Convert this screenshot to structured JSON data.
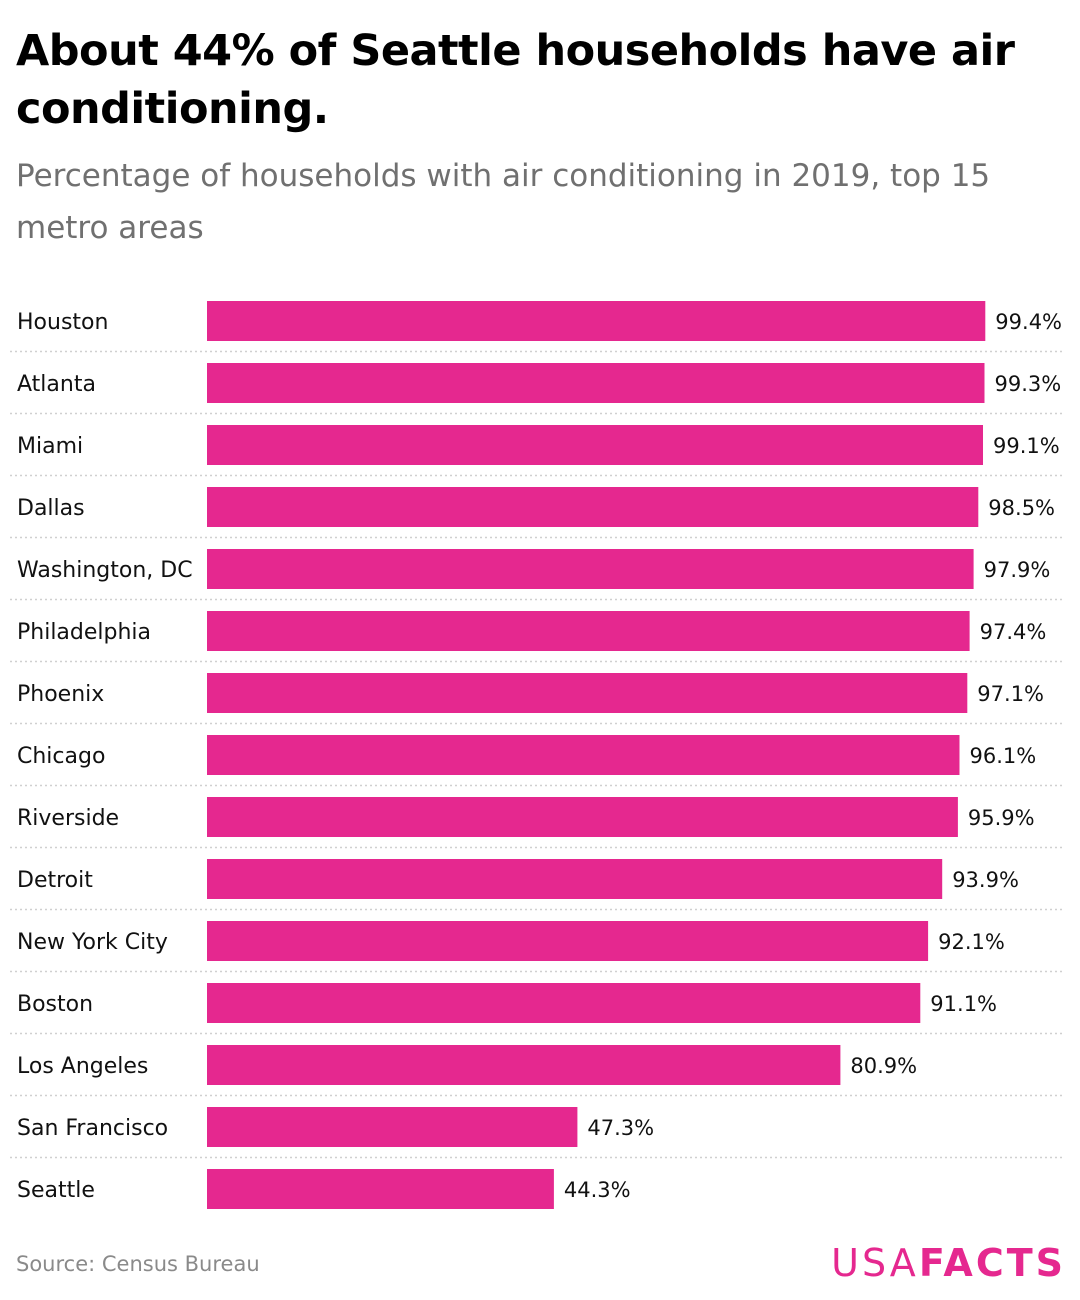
{
  "title": "About 44% of Seattle households have air conditioning.",
  "subtitle": "Percentage of households with air conditioning in 2019, top 15 metro areas",
  "source": "Source: Census Bureau",
  "logo": {
    "light": "USA",
    "bold": "FACTS"
  },
  "colors": {
    "bar": "#e5288f",
    "grid": "#d0d0d0",
    "logo": "#e5288f"
  },
  "chart_data": {
    "type": "bar",
    "orientation": "horizontal",
    "categories": [
      "Houston",
      "Atlanta",
      "Miami",
      "Dallas",
      "Washington, DC",
      "Philadelphia",
      "Phoenix",
      "Chicago",
      "Riverside",
      "Detroit",
      "New York City",
      "Boston",
      "Los Angeles",
      "San Francisco",
      "Seattle"
    ],
    "values": [
      99.4,
      99.3,
      99.1,
      98.5,
      97.9,
      97.4,
      97.1,
      96.1,
      95.9,
      93.9,
      92.1,
      91.1,
      80.9,
      47.3,
      44.3
    ],
    "value_labels": [
      "99.4%",
      "99.3%",
      "99.1%",
      "98.5%",
      "97.9%",
      "97.4%",
      "97.1%",
      "96.1%",
      "95.9%",
      "93.9%",
      "92.1%",
      "91.1%",
      "80.9%",
      "47.3%",
      "44.3%"
    ],
    "xlim": [
      0,
      100
    ],
    "grid": false,
    "row_separators": "dotted",
    "legend": "none"
  }
}
